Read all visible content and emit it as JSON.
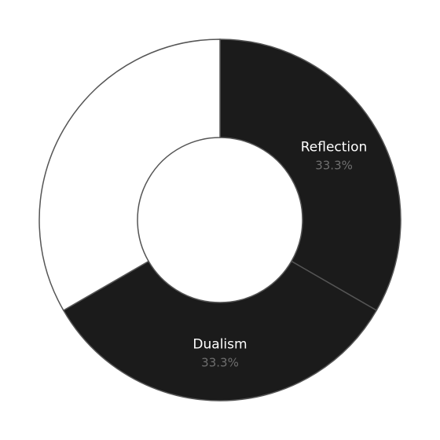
{
  "chart_data": {
    "type": "pie",
    "donut": true,
    "title": "",
    "legend": "none",
    "slices": [
      {
        "label": "Reflection",
        "value": 33.3,
        "display": "33.3%",
        "color": "#1b1b1b",
        "text_color": "#ffffff"
      },
      {
        "label": "Dualism",
        "value": 33.3,
        "display": "33.3%",
        "color": "#1b1b1b",
        "text_color": "#ffffff"
      },
      {
        "label": "",
        "value": 33.3,
        "display": "",
        "color": "#ffffff",
        "text_color": "#1b1b1b"
      }
    ],
    "start_angle_deg": 0,
    "direction": "clockwise",
    "stroke_color": "#555555",
    "inner_fill": "#ffffff"
  }
}
